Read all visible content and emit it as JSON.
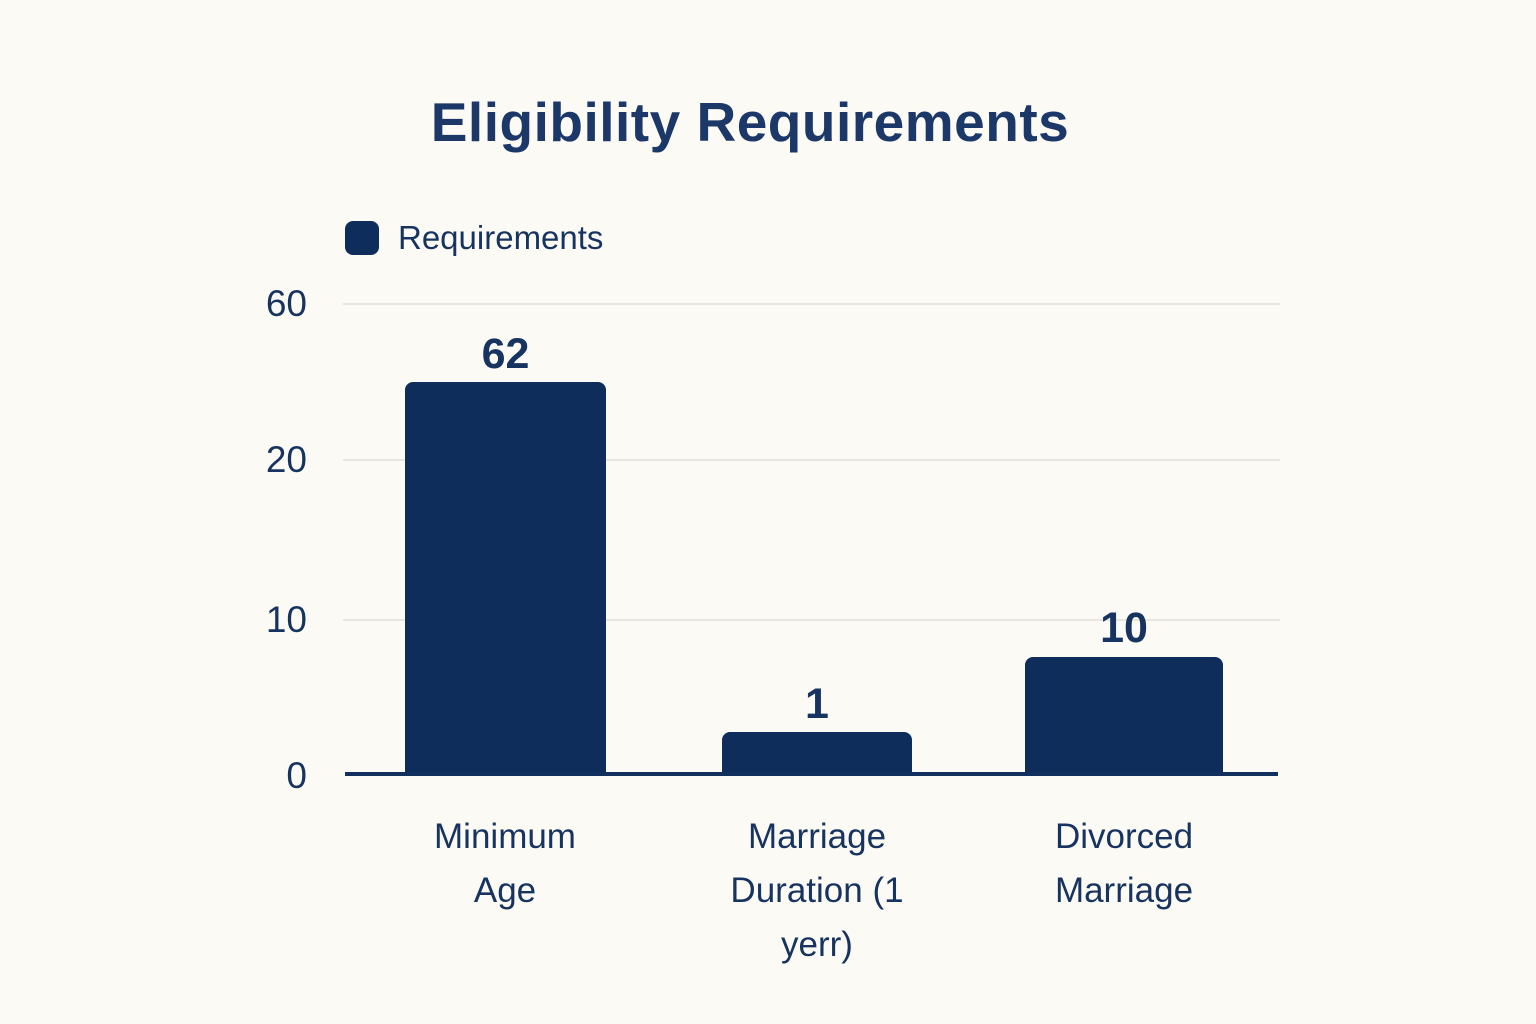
{
  "legend": {
    "label": "Requirements"
  },
  "y_axis": {
    "ticks": [
      "60",
      "20",
      "10",
      "0"
    ]
  },
  "colors": {
    "background": "#fcfaf5",
    "bar": "#0e2d5a",
    "text": "#17335f",
    "gridline": "#e9e6e0",
    "axis": "#12305e"
  },
  "chart_data": {
    "type": "bar",
    "title": "Eligibility Requirements",
    "categories": [
      "Minimum Age",
      "Marriage Duration (1 yerr)",
      "Divorced Marriage"
    ],
    "series": [
      {
        "name": "Requirements",
        "values": [
          62,
          1,
          10
        ]
      }
    ],
    "xlabel": "",
    "ylabel": "",
    "y_tick_labels_top_to_bottom": [
      "60",
      "20",
      "10",
      "0"
    ],
    "grid": true,
    "legend_position": "top-left",
    "bar_color": "#0e2d5a",
    "layout_note": "y-axis tick spacing as rendered is non-linear: 60, 20, 10, 0 appear evenly spaced; bar heights drawn as in source image"
  }
}
